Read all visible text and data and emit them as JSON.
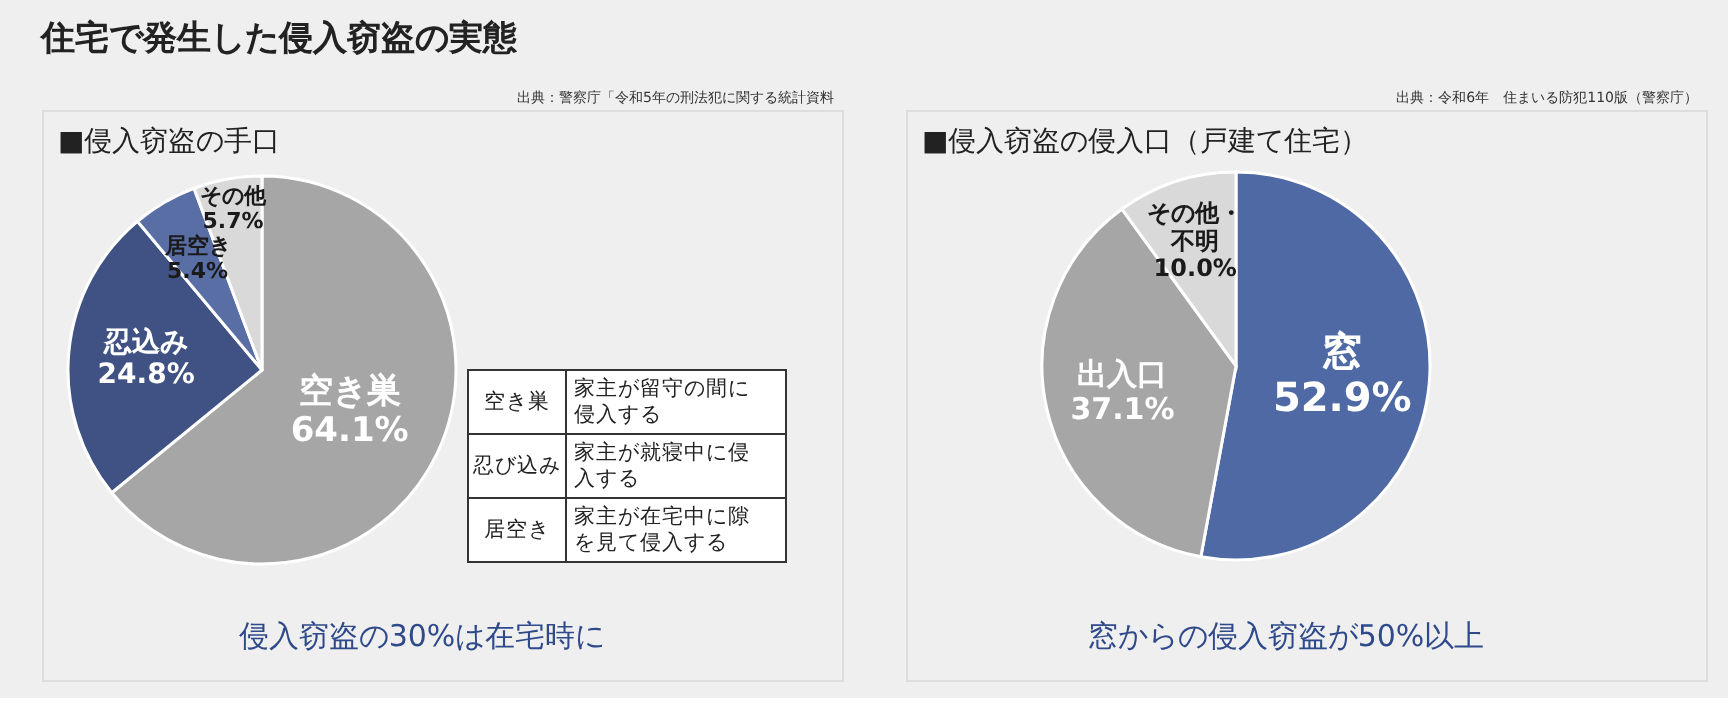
{
  "chart_data": [
    {
      "type": "pie",
      "title": "住宅で発生した侵入窃盗の実態",
      "subtitle": "■侵入窃盗の手口",
      "categories": [
        "空き巣",
        "忍込み",
        "居空き",
        "その他"
      ],
      "values": [
        64.1,
        24.8,
        5.4,
        5.7
      ],
      "colors": [
        "#a6a6a6",
        "#3f5283",
        "#5a6ea6",
        "#d9d9d9"
      ],
      "value_labels": [
        "64.1%",
        "24.8%",
        "5.4%",
        "5.7%"
      ],
      "annotations": [
        "出典：警察庁「令和5年の刑法犯に関する統計資料",
        "空き巣",
        "家主が留守の間に侵入する",
        "忍び込み",
        "家主が就寝中に侵入する",
        "居空き",
        "家主が在宅中に隙を見て侵入する",
        "侵入窃盗の30%は在宅時に"
      ],
      "legend": false
    },
    {
      "type": "pie",
      "subtitle": "■侵入窃盗の侵入口（戸建て住宅）",
      "categories": [
        "窓",
        "出入口",
        "その他・不明"
      ],
      "values": [
        52.9,
        37.1,
        10.0
      ],
      "colors": [
        "#4f69a4",
        "#a6a6a6",
        "#d9d9d9"
      ],
      "value_labels": [
        "52.9%",
        "37.1%",
        "10.0%"
      ],
      "annotations": [
        "出典：令和6年　住まいる防犯110版（警察庁）",
        "窓からの侵入窃盗が50%以上"
      ],
      "legend": false
    }
  ]
}
